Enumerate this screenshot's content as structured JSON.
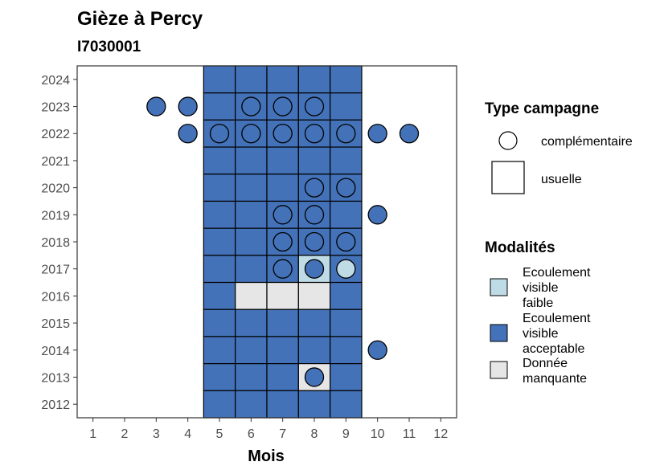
{
  "chart_data": {
    "type": "heatmap",
    "title": "Gièze à Percy",
    "subtitle": "I7030001",
    "xlabel": "Mois",
    "ylabel": "",
    "x_ticks": [
      1,
      2,
      3,
      4,
      5,
      6,
      7,
      8,
      9,
      10,
      11,
      12
    ],
    "y_ticks": [
      2012,
      2013,
      2014,
      2015,
      2016,
      2017,
      2018,
      2019,
      2020,
      2021,
      2022,
      2023,
      2024
    ],
    "xlim": [
      0.5,
      12.5
    ],
    "ylim": [
      2011.5,
      2024.5
    ],
    "grid": false,
    "colors": {
      "Ecoulement visible faible": "#bfdbe6",
      "Ecoulement visible acceptable": "#4472b8",
      "Donnée manquante": "#e6e6e6"
    },
    "legend_type": {
      "title": "Type campagne",
      "items": [
        {
          "shape": "circle",
          "label": "complémentaire"
        },
        {
          "shape": "square",
          "label": "usuelle"
        }
      ]
    },
    "legend_modalites": {
      "title": "Modalités",
      "items": [
        {
          "key": "Ecoulement visible faible",
          "lines": [
            "Ecoulement",
            "visible",
            "faible"
          ]
        },
        {
          "key": "Ecoulement visible acceptable",
          "lines": [
            "Ecoulement",
            "visible",
            "acceptable"
          ]
        },
        {
          "key": "Donnée manquante",
          "lines": [
            "Donnée",
            "manquante"
          ]
        }
      ]
    },
    "usuelle": [
      {
        "x": 5,
        "y": 2024,
        "m": "Ecoulement visible acceptable"
      },
      {
        "x": 6,
        "y": 2024,
        "m": "Ecoulement visible acceptable"
      },
      {
        "x": 7,
        "y": 2024,
        "m": "Ecoulement visible acceptable"
      },
      {
        "x": 8,
        "y": 2024,
        "m": "Ecoulement visible acceptable"
      },
      {
        "x": 9,
        "y": 2024,
        "m": "Ecoulement visible acceptable"
      },
      {
        "x": 5,
        "y": 2023,
        "m": "Ecoulement visible acceptable"
      },
      {
        "x": 6,
        "y": 2023,
        "m": "Ecoulement visible acceptable"
      },
      {
        "x": 7,
        "y": 2023,
        "m": "Ecoulement visible acceptable"
      },
      {
        "x": 8,
        "y": 2023,
        "m": "Ecoulement visible acceptable"
      },
      {
        "x": 9,
        "y": 2023,
        "m": "Ecoulement visible acceptable"
      },
      {
        "x": 5,
        "y": 2022,
        "m": "Ecoulement visible acceptable"
      },
      {
        "x": 6,
        "y": 2022,
        "m": "Ecoulement visible acceptable"
      },
      {
        "x": 7,
        "y": 2022,
        "m": "Ecoulement visible acceptable"
      },
      {
        "x": 8,
        "y": 2022,
        "m": "Ecoulement visible acceptable"
      },
      {
        "x": 9,
        "y": 2022,
        "m": "Ecoulement visible acceptable"
      },
      {
        "x": 5,
        "y": 2021,
        "m": "Ecoulement visible acceptable"
      },
      {
        "x": 6,
        "y": 2021,
        "m": "Ecoulement visible acceptable"
      },
      {
        "x": 7,
        "y": 2021,
        "m": "Ecoulement visible acceptable"
      },
      {
        "x": 8,
        "y": 2021,
        "m": "Ecoulement visible acceptable"
      },
      {
        "x": 9,
        "y": 2021,
        "m": "Ecoulement visible acceptable"
      },
      {
        "x": 5,
        "y": 2020,
        "m": "Ecoulement visible acceptable"
      },
      {
        "x": 6,
        "y": 2020,
        "m": "Ecoulement visible acceptable"
      },
      {
        "x": 7,
        "y": 2020,
        "m": "Ecoulement visible acceptable"
      },
      {
        "x": 8,
        "y": 2020,
        "m": "Ecoulement visible acceptable"
      },
      {
        "x": 9,
        "y": 2020,
        "m": "Ecoulement visible acceptable"
      },
      {
        "x": 5,
        "y": 2019,
        "m": "Ecoulement visible acceptable"
      },
      {
        "x": 6,
        "y": 2019,
        "m": "Ecoulement visible acceptable"
      },
      {
        "x": 7,
        "y": 2019,
        "m": "Ecoulement visible acceptable"
      },
      {
        "x": 8,
        "y": 2019,
        "m": "Ecoulement visible acceptable"
      },
      {
        "x": 9,
        "y": 2019,
        "m": "Ecoulement visible acceptable"
      },
      {
        "x": 5,
        "y": 2018,
        "m": "Ecoulement visible acceptable"
      },
      {
        "x": 6,
        "y": 2018,
        "m": "Ecoulement visible acceptable"
      },
      {
        "x": 7,
        "y": 2018,
        "m": "Ecoulement visible acceptable"
      },
      {
        "x": 8,
        "y": 2018,
        "m": "Ecoulement visible acceptable"
      },
      {
        "x": 9,
        "y": 2018,
        "m": "Ecoulement visible acceptable"
      },
      {
        "x": 5,
        "y": 2017,
        "m": "Ecoulement visible acceptable"
      },
      {
        "x": 6,
        "y": 2017,
        "m": "Ecoulement visible acceptable"
      },
      {
        "x": 7,
        "y": 2017,
        "m": "Ecoulement visible acceptable"
      },
      {
        "x": 8,
        "y": 2017,
        "m": "Ecoulement visible faible"
      },
      {
        "x": 9,
        "y": 2017,
        "m": "Ecoulement visible acceptable"
      },
      {
        "x": 5,
        "y": 2016,
        "m": "Ecoulement visible acceptable"
      },
      {
        "x": 6,
        "y": 2016,
        "m": "Donnée manquante"
      },
      {
        "x": 7,
        "y": 2016,
        "m": "Donnée manquante"
      },
      {
        "x": 8,
        "y": 2016,
        "m": "Donnée manquante"
      },
      {
        "x": 9,
        "y": 2016,
        "m": "Ecoulement visible acceptable"
      },
      {
        "x": 5,
        "y": 2015,
        "m": "Ecoulement visible acceptable"
      },
      {
        "x": 6,
        "y": 2015,
        "m": "Ecoulement visible acceptable"
      },
      {
        "x": 7,
        "y": 2015,
        "m": "Ecoulement visible acceptable"
      },
      {
        "x": 8,
        "y": 2015,
        "m": "Ecoulement visible acceptable"
      },
      {
        "x": 9,
        "y": 2015,
        "m": "Ecoulement visible acceptable"
      },
      {
        "x": 5,
        "y": 2014,
        "m": "Ecoulement visible acceptable"
      },
      {
        "x": 6,
        "y": 2014,
        "m": "Ecoulement visible acceptable"
      },
      {
        "x": 7,
        "y": 2014,
        "m": "Ecoulement visible acceptable"
      },
      {
        "x": 8,
        "y": 2014,
        "m": "Ecoulement visible acceptable"
      },
      {
        "x": 9,
        "y": 2014,
        "m": "Ecoulement visible acceptable"
      },
      {
        "x": 5,
        "y": 2013,
        "m": "Ecoulement visible acceptable"
      },
      {
        "x": 6,
        "y": 2013,
        "m": "Ecoulement visible acceptable"
      },
      {
        "x": 7,
        "y": 2013,
        "m": "Ecoulement visible acceptable"
      },
      {
        "x": 8,
        "y": 2013,
        "m": "Donnée manquante"
      },
      {
        "x": 9,
        "y": 2013,
        "m": "Ecoulement visible acceptable"
      },
      {
        "x": 5,
        "y": 2012,
        "m": "Ecoulement visible acceptable"
      },
      {
        "x": 6,
        "y": 2012,
        "m": "Ecoulement visible acceptable"
      },
      {
        "x": 7,
        "y": 2012,
        "m": "Ecoulement visible acceptable"
      },
      {
        "x": 8,
        "y": 2012,
        "m": "Ecoulement visible acceptable"
      },
      {
        "x": 9,
        "y": 2012,
        "m": "Ecoulement visible acceptable"
      }
    ],
    "complementaire": [
      {
        "x": 3,
        "y": 2023,
        "m": "Ecoulement visible acceptable"
      },
      {
        "x": 4,
        "y": 2023,
        "m": "Ecoulement visible acceptable"
      },
      {
        "x": 6,
        "y": 2023,
        "m": "Ecoulement visible acceptable"
      },
      {
        "x": 7,
        "y": 2023,
        "m": "Ecoulement visible acceptable"
      },
      {
        "x": 8,
        "y": 2023,
        "m": "Ecoulement visible acceptable"
      },
      {
        "x": 4,
        "y": 2022,
        "m": "Ecoulement visible acceptable"
      },
      {
        "x": 5,
        "y": 2022,
        "m": "Ecoulement visible acceptable"
      },
      {
        "x": 6,
        "y": 2022,
        "m": "Ecoulement visible acceptable"
      },
      {
        "x": 7,
        "y": 2022,
        "m": "Ecoulement visible acceptable"
      },
      {
        "x": 8,
        "y": 2022,
        "m": "Ecoulement visible acceptable"
      },
      {
        "x": 9,
        "y": 2022,
        "m": "Ecoulement visible acceptable"
      },
      {
        "x": 10,
        "y": 2022,
        "m": "Ecoulement visible acceptable"
      },
      {
        "x": 11,
        "y": 2022,
        "m": "Ecoulement visible acceptable"
      },
      {
        "x": 8,
        "y": 2020,
        "m": "Ecoulement visible acceptable"
      },
      {
        "x": 9,
        "y": 2020,
        "m": "Ecoulement visible acceptable"
      },
      {
        "x": 7,
        "y": 2019,
        "m": "Ecoulement visible acceptable"
      },
      {
        "x": 8,
        "y": 2019,
        "m": "Ecoulement visible acceptable"
      },
      {
        "x": 10,
        "y": 2019,
        "m": "Ecoulement visible acceptable"
      },
      {
        "x": 7,
        "y": 2018,
        "m": "Ecoulement visible acceptable"
      },
      {
        "x": 8,
        "y": 2018,
        "m": "Ecoulement visible acceptable"
      },
      {
        "x": 9,
        "y": 2018,
        "m": "Ecoulement visible acceptable"
      },
      {
        "x": 7,
        "y": 2017,
        "m": "Ecoulement visible acceptable"
      },
      {
        "x": 8,
        "y": 2017,
        "m": "Ecoulement visible acceptable"
      },
      {
        "x": 9,
        "y": 2017,
        "m": "Ecoulement visible faible"
      },
      {
        "x": 10,
        "y": 2014,
        "m": "Ecoulement visible acceptable"
      },
      {
        "x": 8,
        "y": 2013,
        "m": "Ecoulement visible acceptable"
      }
    ]
  }
}
